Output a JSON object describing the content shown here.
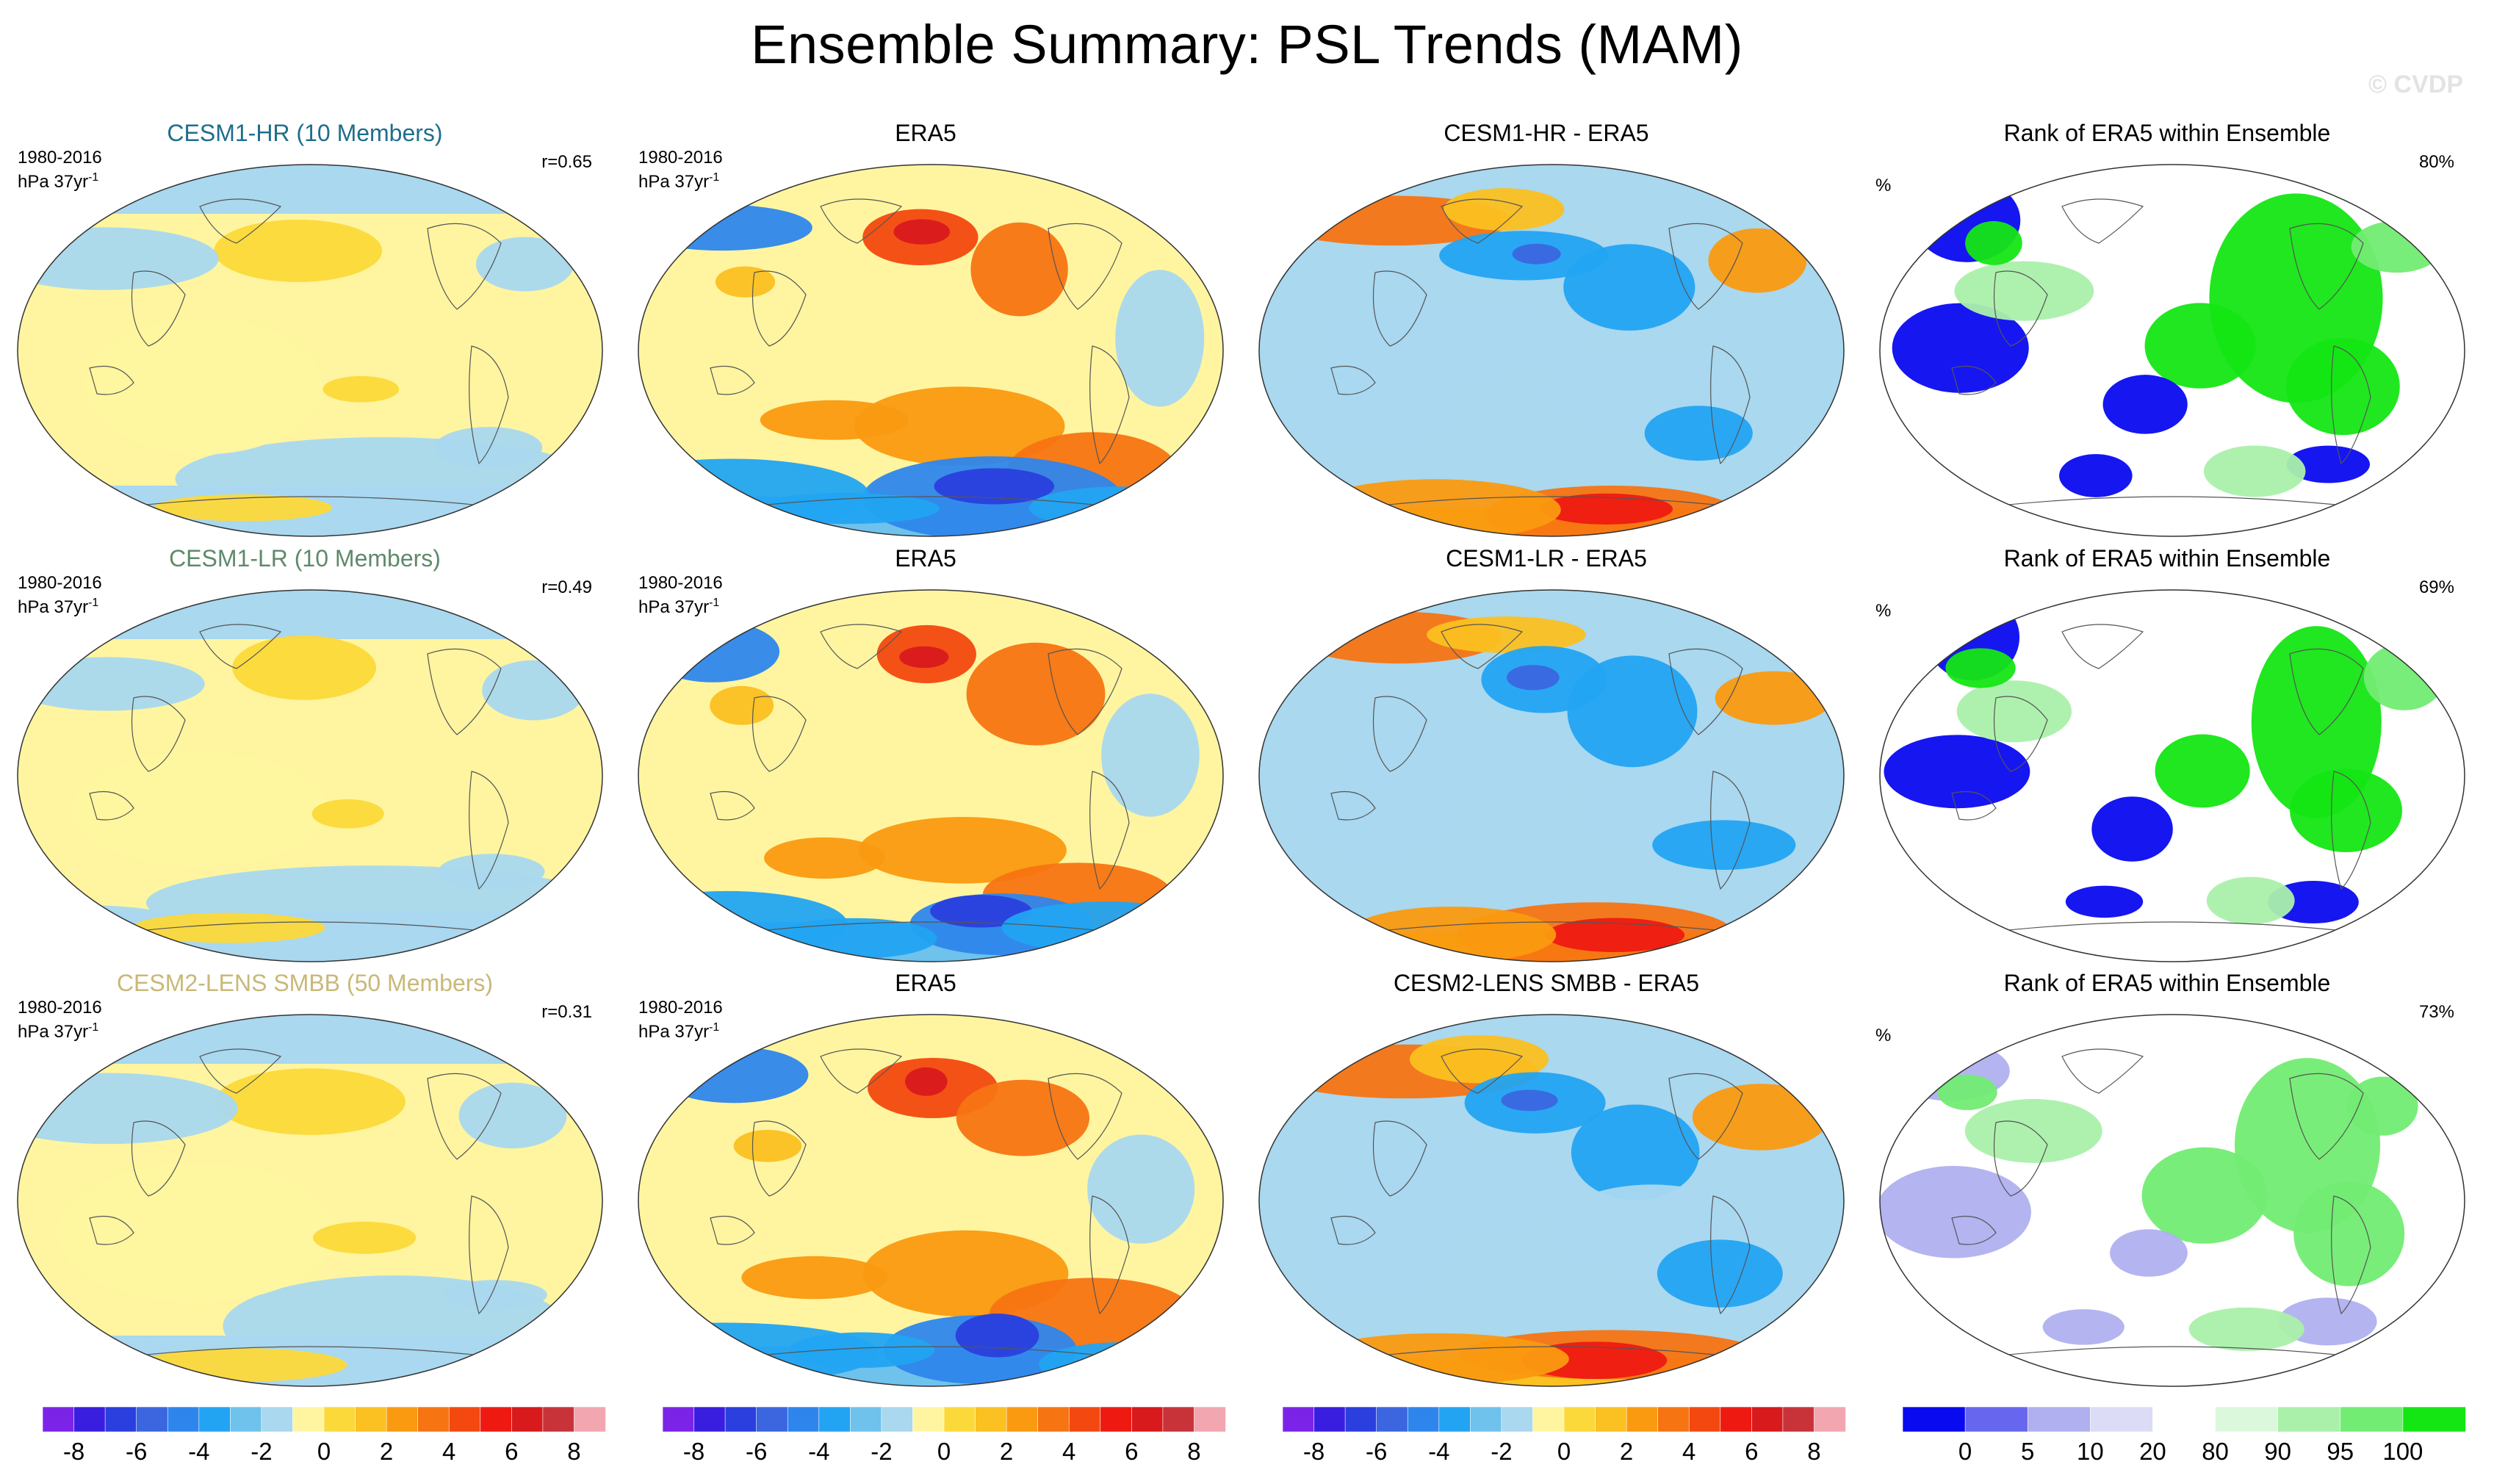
{
  "header": {
    "title": "Ensemble Summary: PSL Trends (MAM)",
    "watermark": "© CVDP"
  },
  "rows": [
    {
      "ensemble": {
        "title": "CESM1-HR (10 Members)",
        "title_color": "#1f6e8c",
        "period": "1980-2016",
        "units": "hPa 37yr",
        "units_exp": "-1",
        "corr": "r=0.65"
      },
      "obs": {
        "title": "ERA5",
        "period": "1980-2016",
        "units": "hPa 37yr",
        "units_exp": "-1"
      },
      "diff": {
        "title": "CESM1-HR - ERA5"
      },
      "rank": {
        "title": "Rank of ERA5 within Ensemble",
        "unit": "%",
        "score": "80%"
      }
    },
    {
      "ensemble": {
        "title": "CESM1-LR (10 Members)",
        "title_color": "#5f8a6a",
        "period": "1980-2016",
        "units": "hPa 37yr",
        "units_exp": "-1",
        "corr": "r=0.49"
      },
      "obs": {
        "title": "ERA5",
        "period": "1980-2016",
        "units": "hPa 37yr",
        "units_exp": "-1"
      },
      "diff": {
        "title": "CESM1-LR - ERA5"
      },
      "rank": {
        "title": "Rank of ERA5 within Ensemble",
        "unit": "%",
        "score": "69%"
      }
    },
    {
      "ensemble": {
        "title": "CESM2-LENS SMBB (50 Members)",
        "title_color": "#c9b878",
        "period": "1980-2016",
        "units": "hPa 37yr",
        "units_exp": "-1",
        "corr": "r=0.31"
      },
      "obs": {
        "title": "ERA5",
        "period": "1980-2016",
        "units": "hPa 37yr",
        "units_exp": "-1"
      },
      "diff": {
        "title": "CESM2-LENS SMBB - ERA5"
      },
      "rank": {
        "title": "Rank of ERA5 within Ensemble",
        "unit": "%",
        "score": "73%"
      }
    }
  ],
  "colorbars": {
    "trend": {
      "colors": [
        "#7b24e8",
        "#3a1ee0",
        "#2a3fdd",
        "#3b66e0",
        "#2e86ec",
        "#22a4f2",
        "#6ec2ec",
        "#a9d8ef",
        "#fff5a0",
        "#fcd93a",
        "#fbc021",
        "#fa9a10",
        "#f77412",
        "#f34810",
        "#ee1a12",
        "#d81a1c",
        "#c8333a",
        "#f2a6b0"
      ],
      "tick_labels": [
        "-8",
        "-6",
        "-4",
        "-2",
        "0",
        "2",
        "4",
        "6",
        "8"
      ]
    },
    "rank": {
      "colors": [
        "#0a0af0",
        "#6666ee",
        "#b0b0f0",
        "#dcdcf6",
        "#ffffff",
        "#dcf8dc",
        "#aaf0aa",
        "#72ec72",
        "#14e614"
      ],
      "tick_labels": [
        "0",
        "5",
        "10",
        "20",
        "80",
        "90",
        "95",
        "100"
      ]
    }
  },
  "chart_data": [
    {
      "type": "heatmap",
      "row": 1,
      "panel": "ensemble-mean",
      "title": "CESM1-HR (10 Members)",
      "variable": "PSL trend",
      "season": "MAM",
      "period": "1980-2016",
      "units": "hPa 37yr-1",
      "pattern_correlation": 0.65,
      "color_range": [
        -8,
        8
      ]
    },
    {
      "type": "heatmap",
      "row": 1,
      "panel": "observations",
      "title": "ERA5",
      "variable": "PSL trend",
      "season": "MAM",
      "period": "1980-2016",
      "units": "hPa 37yr-1",
      "color_range": [
        -8,
        8
      ]
    },
    {
      "type": "heatmap",
      "row": 1,
      "panel": "difference",
      "title": "CESM1-HR - ERA5",
      "color_range": [
        -8,
        8
      ]
    },
    {
      "type": "heatmap",
      "row": 1,
      "panel": "rank",
      "title": "Rank of ERA5 within Ensemble",
      "units": "%",
      "area_within_10_90": 80,
      "rank_levels": [
        0,
        5,
        10,
        20,
        80,
        90,
        95,
        100
      ]
    },
    {
      "type": "heatmap",
      "row": 2,
      "panel": "ensemble-mean",
      "title": "CESM1-LR (10 Members)",
      "variable": "PSL trend",
      "season": "MAM",
      "period": "1980-2016",
      "units": "hPa 37yr-1",
      "pattern_correlation": 0.49,
      "color_range": [
        -8,
        8
      ]
    },
    {
      "type": "heatmap",
      "row": 2,
      "panel": "observations",
      "title": "ERA5",
      "variable": "PSL trend",
      "season": "MAM",
      "period": "1980-2016",
      "units": "hPa 37yr-1",
      "color_range": [
        -8,
        8
      ]
    },
    {
      "type": "heatmap",
      "row": 2,
      "panel": "difference",
      "title": "CESM1-LR - ERA5",
      "color_range": [
        -8,
        8
      ]
    },
    {
      "type": "heatmap",
      "row": 2,
      "panel": "rank",
      "title": "Rank of ERA5 within Ensemble",
      "units": "%",
      "area_within_10_90": 69,
      "rank_levels": [
        0,
        5,
        10,
        20,
        80,
        90,
        95,
        100
      ]
    },
    {
      "type": "heatmap",
      "row": 3,
      "panel": "ensemble-mean",
      "title": "CESM2-LENS SMBB (50 Members)",
      "variable": "PSL trend",
      "season": "MAM",
      "period": "1980-2016",
      "units": "hPa 37yr-1",
      "pattern_correlation": 0.31,
      "color_range": [
        -8,
        8
      ]
    },
    {
      "type": "heatmap",
      "row": 3,
      "panel": "observations",
      "title": "ERA5",
      "variable": "PSL trend",
      "season": "MAM",
      "period": "1980-2016",
      "units": "hPa 37yr-1",
      "color_range": [
        -8,
        8
      ]
    },
    {
      "type": "heatmap",
      "row": 3,
      "panel": "difference",
      "title": "CESM2-LENS SMBB - ERA5",
      "color_range": [
        -8,
        8
      ]
    },
    {
      "type": "heatmap",
      "row": 3,
      "panel": "rank",
      "title": "Rank of ERA5 within Ensemble",
      "units": "%",
      "area_within_10_90": 73,
      "rank_levels": [
        0,
        5,
        10,
        20,
        80,
        90,
        95,
        100
      ]
    }
  ]
}
